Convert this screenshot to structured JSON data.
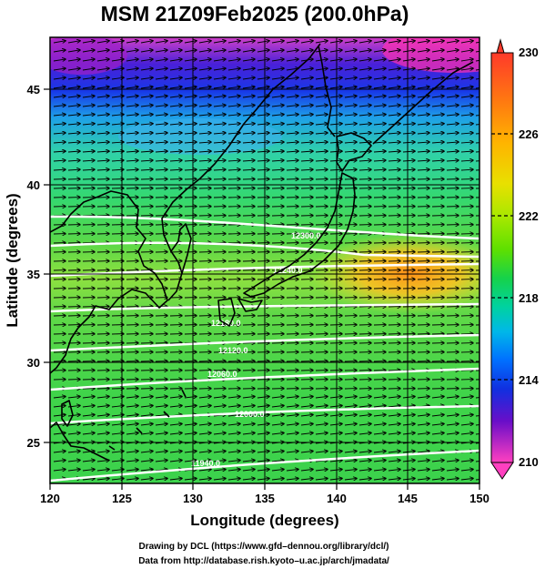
{
  "title": "MSM 21Z09Feb2025 (200.0hPa)",
  "axes": {
    "xlabel": "Longitude (degrees)",
    "ylabel": "Latitude  (degrees)",
    "xticks": [
      "120",
      "125",
      "130",
      "135",
      "140",
      "145",
      "150"
    ],
    "yticks": [
      "25",
      "30",
      "35",
      "40",
      "45"
    ],
    "xlim": [
      120,
      150
    ],
    "ylim": [
      22.4,
      47.6
    ]
  },
  "colorbar": {
    "labels": [
      "230",
      "226",
      "222",
      "218",
      "214",
      "210"
    ],
    "range": [
      210,
      230
    ],
    "colors_top_to_bottom": [
      "#ff3a2a",
      "#ff7a10",
      "#ffb400",
      "#e8e000",
      "#a8e800",
      "#5ee000",
      "#16d24a",
      "#00d2a0",
      "#00b8e8",
      "#0070ff",
      "#1030e0",
      "#6a0ec8",
      "#c414c8",
      "#ff40c0"
    ]
  },
  "contour_labels": [
    "12300.0",
    "12240.0",
    "12180.0",
    "12120.0",
    "12060.0",
    "12000.0",
    "11940.0"
  ],
  "credits": [
    "Drawing by DCL (https://www.gfd–dennou.org/library/dcl/)",
    "Data from http://database.rish.kyoto–u.ac.jp/arch/jmadata/"
  ]
}
